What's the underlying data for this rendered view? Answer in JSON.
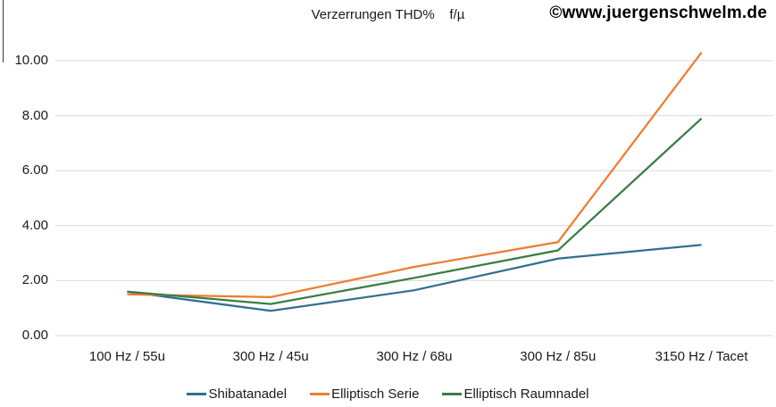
{
  "header": {
    "title": "Verzerrungen THD%    f/µ",
    "watermark": "©www.juergenschwelm.de"
  },
  "chart_data": {
    "type": "line",
    "title": "Verzerrungen THD%    f/µ",
    "categories": [
      "100 Hz / 55u",
      "300 Hz / 45u",
      "300 Hz / 68u",
      "300 Hz / 85u",
      "3150 Hz / Tacet"
    ],
    "series": [
      {
        "name": "Shibatanadel",
        "color": "#31708e",
        "values": [
          1.6,
          0.9,
          1.65,
          2.8,
          3.3
        ]
      },
      {
        "name": "Elliptisch Serie",
        "color": "#ed7d31",
        "values": [
          1.5,
          1.4,
          2.5,
          3.4,
          10.3
        ]
      },
      {
        "name": "Elliptisch Raumnadel",
        "color": "#3a7d44",
        "values": [
          1.6,
          1.15,
          2.1,
          3.1,
          7.9
        ]
      }
    ],
    "ylim": [
      0,
      10
    ],
    "ytick_step": 2,
    "ytick_decimals": 2,
    "grid": true,
    "gridline_color": "#d9d9d9",
    "legend_position": "bottom",
    "text_color": "#1a1a1a",
    "background_color": "#ffffff"
  }
}
